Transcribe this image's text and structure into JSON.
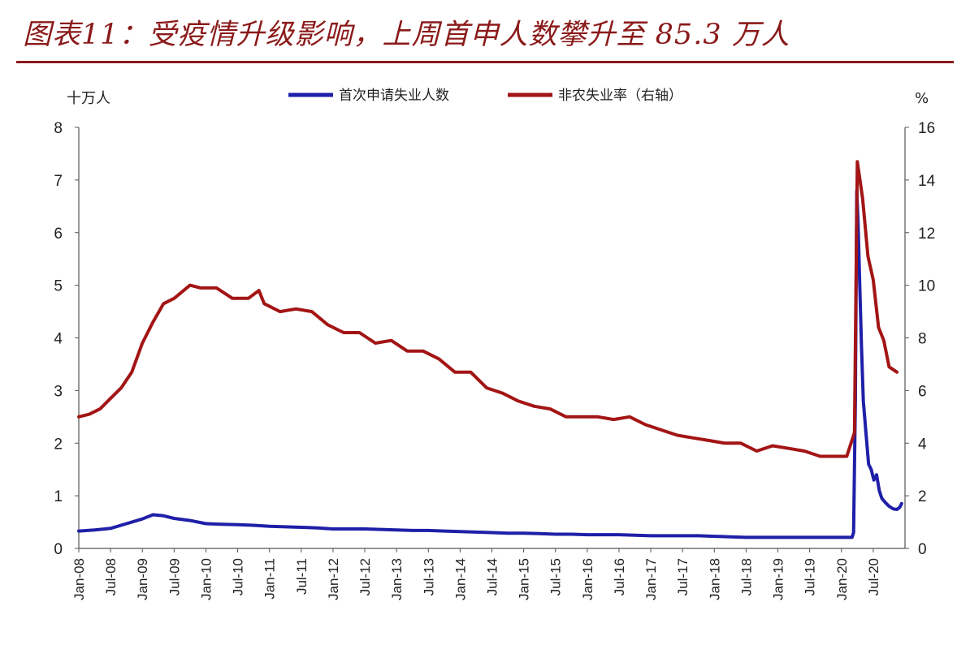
{
  "title": "图表11：受疫情升级影响，上周首申人数攀升至 85.3 万人",
  "chart_data": {
    "type": "line",
    "left_axis_unit": "十万人",
    "right_axis_unit": "%",
    "left_ylim": [
      0,
      8
    ],
    "right_ylim": [
      0,
      16
    ],
    "left_yticks": [
      "0",
      "1",
      "2",
      "3",
      "4",
      "5",
      "6",
      "7",
      "8"
    ],
    "right_yticks": [
      "0",
      "2",
      "4",
      "6",
      "8",
      "10",
      "12",
      "14",
      "16"
    ],
    "xtick_labels": [
      "Jan-08",
      "Jul-08",
      "Jan-09",
      "Jul-09",
      "Jan-10",
      "Jul-10",
      "Jan-11",
      "Jul-11",
      "Jan-12",
      "Jul-12",
      "Jan-13",
      "Jul-13",
      "Jan-14",
      "Jul-14",
      "Jan-15",
      "Jul-15",
      "Jan-16",
      "Jul-16",
      "Jan-17",
      "Jul-17",
      "Jan-18",
      "Jul-18",
      "Jan-19",
      "Jul-19",
      "Jan-20",
      "Jul-20"
    ],
    "x_range": [
      "2008-01",
      "2020-12"
    ],
    "grid": false,
    "legend_position": "top",
    "series": [
      {
        "name": "首次申请失业人数",
        "axis": "left",
        "color": "#1f1fa8",
        "points": [
          [
            "2008-01",
            0.33
          ],
          [
            "2008-04",
            0.35
          ],
          [
            "2008-07",
            0.38
          ],
          [
            "2008-10",
            0.47
          ],
          [
            "2009-01",
            0.56
          ],
          [
            "2009-03",
            0.64
          ],
          [
            "2009-05",
            0.62
          ],
          [
            "2009-07",
            0.57
          ],
          [
            "2009-10",
            0.53
          ],
          [
            "2010-01",
            0.47
          ],
          [
            "2010-04",
            0.46
          ],
          [
            "2010-07",
            0.45
          ],
          [
            "2010-10",
            0.44
          ],
          [
            "2011-01",
            0.42
          ],
          [
            "2011-04",
            0.41
          ],
          [
            "2011-07",
            0.4
          ],
          [
            "2011-10",
            0.39
          ],
          [
            "2012-01",
            0.37
          ],
          [
            "2012-04",
            0.37
          ],
          [
            "2012-07",
            0.37
          ],
          [
            "2012-10",
            0.36
          ],
          [
            "2013-01",
            0.35
          ],
          [
            "2013-04",
            0.34
          ],
          [
            "2013-07",
            0.34
          ],
          [
            "2013-10",
            0.33
          ],
          [
            "2014-01",
            0.32
          ],
          [
            "2014-04",
            0.31
          ],
          [
            "2014-07",
            0.3
          ],
          [
            "2014-10",
            0.29
          ],
          [
            "2015-01",
            0.29
          ],
          [
            "2015-04",
            0.28
          ],
          [
            "2015-07",
            0.27
          ],
          [
            "2015-10",
            0.27
          ],
          [
            "2016-01",
            0.26
          ],
          [
            "2016-04",
            0.26
          ],
          [
            "2016-07",
            0.26
          ],
          [
            "2016-10",
            0.25
          ],
          [
            "2017-01",
            0.24
          ],
          [
            "2017-04",
            0.24
          ],
          [
            "2017-07",
            0.24
          ],
          [
            "2017-10",
            0.24
          ],
          [
            "2018-01",
            0.23
          ],
          [
            "2018-04",
            0.22
          ],
          [
            "2018-07",
            0.21
          ],
          [
            "2018-10",
            0.21
          ],
          [
            "2019-01",
            0.21
          ],
          [
            "2019-04",
            0.21
          ],
          [
            "2019-07",
            0.21
          ],
          [
            "2019-10",
            0.21
          ],
          [
            "2020-01",
            0.21
          ],
          [
            "2020-03-01",
            0.21
          ],
          [
            "2020-03-10",
            0.3
          ],
          [
            "2020-03-20",
            2.8
          ],
          [
            "2020-03-28",
            6.8
          ],
          [
            "2020-04-05",
            6.2
          ],
          [
            "2020-04-15",
            5.0
          ],
          [
            "2020-04-25",
            3.8
          ],
          [
            "2020-05-05",
            2.8
          ],
          [
            "2020-05-20",
            2.2
          ],
          [
            "2020-06-05",
            1.6
          ],
          [
            "2020-06-20",
            1.5
          ],
          [
            "2020-07-05",
            1.3
          ],
          [
            "2020-07-20",
            1.4
          ],
          [
            "2020-08-05",
            1.1
          ],
          [
            "2020-08-20",
            0.95
          ],
          [
            "2020-09-10",
            0.87
          ],
          [
            "2020-10-01",
            0.8
          ],
          [
            "2020-10-25",
            0.75
          ],
          [
            "2020-11-15",
            0.74
          ],
          [
            "2020-12-01",
            0.78
          ],
          [
            "2020-12-12",
            0.853
          ]
        ]
      },
      {
        "name": "非农失业率（右轴）",
        "axis": "right",
        "color": "#a31515",
        "points": [
          [
            "2008-01",
            5.0
          ],
          [
            "2008-03",
            5.1
          ],
          [
            "2008-05",
            5.3
          ],
          [
            "2008-07",
            5.7
          ],
          [
            "2008-09",
            6.1
          ],
          [
            "2008-11",
            6.7
          ],
          [
            "2009-01",
            7.8
          ],
          [
            "2009-03",
            8.6
          ],
          [
            "2009-05",
            9.3
          ],
          [
            "2009-07",
            9.5
          ],
          [
            "2009-10",
            10.0
          ],
          [
            "2009-12",
            9.9
          ],
          [
            "2010-03",
            9.9
          ],
          [
            "2010-06",
            9.5
          ],
          [
            "2010-09",
            9.5
          ],
          [
            "2010-11",
            9.8
          ],
          [
            "2010-12",
            9.3
          ],
          [
            "2011-03",
            9.0
          ],
          [
            "2011-06",
            9.1
          ],
          [
            "2011-09",
            9.0
          ],
          [
            "2011-12",
            8.5
          ],
          [
            "2012-03",
            8.2
          ],
          [
            "2012-06",
            8.2
          ],
          [
            "2012-09",
            7.8
          ],
          [
            "2012-12",
            7.9
          ],
          [
            "2013-03",
            7.5
          ],
          [
            "2013-06",
            7.5
          ],
          [
            "2013-09",
            7.2
          ],
          [
            "2013-12",
            6.7
          ],
          [
            "2014-03",
            6.7
          ],
          [
            "2014-06",
            6.1
          ],
          [
            "2014-09",
            5.9
          ],
          [
            "2014-12",
            5.6
          ],
          [
            "2015-03",
            5.4
          ],
          [
            "2015-06",
            5.3
          ],
          [
            "2015-09",
            5.0
          ],
          [
            "2015-12",
            5.0
          ],
          [
            "2016-03",
            5.0
          ],
          [
            "2016-06",
            4.9
          ],
          [
            "2016-09",
            5.0
          ],
          [
            "2016-12",
            4.7
          ],
          [
            "2017-03",
            4.5
          ],
          [
            "2017-06",
            4.3
          ],
          [
            "2017-09",
            4.2
          ],
          [
            "2017-12",
            4.1
          ],
          [
            "2018-03",
            4.0
          ],
          [
            "2018-06",
            4.0
          ],
          [
            "2018-09",
            3.7
          ],
          [
            "2018-12",
            3.9
          ],
          [
            "2019-03",
            3.8
          ],
          [
            "2019-06",
            3.7
          ],
          [
            "2019-09",
            3.5
          ],
          [
            "2019-12",
            3.5
          ],
          [
            "2020-02",
            3.5
          ],
          [
            "2020-03-15",
            4.4
          ],
          [
            "2020-04-01",
            14.7
          ],
          [
            "2020-05-01",
            13.3
          ],
          [
            "2020-06-01",
            11.1
          ],
          [
            "2020-07-01",
            10.2
          ],
          [
            "2020-08-01",
            8.4
          ],
          [
            "2020-09-01",
            7.9
          ],
          [
            "2020-10-01",
            6.9
          ],
          [
            "2020-11-15",
            6.7
          ]
        ]
      }
    ]
  }
}
